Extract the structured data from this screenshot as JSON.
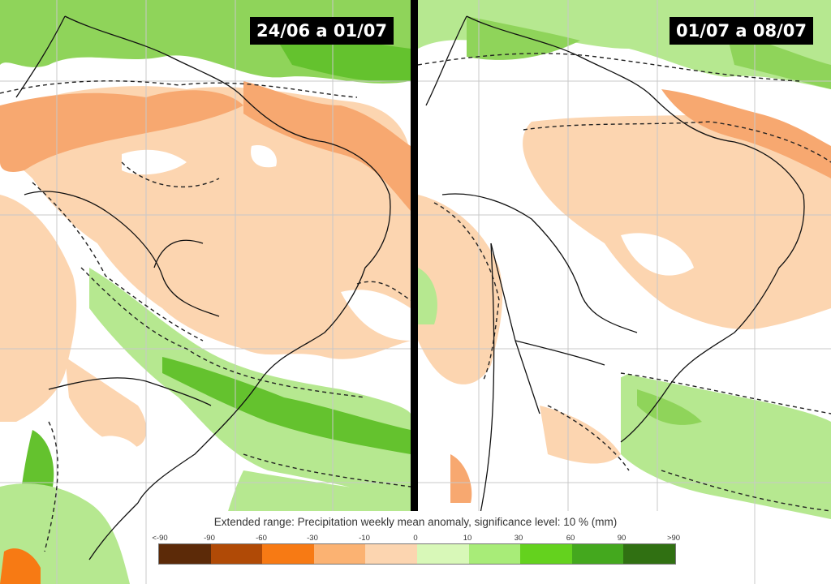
{
  "panels": [
    {
      "period": "24/06 a 01/07"
    },
    {
      "period": "01/07 a 08/07"
    }
  ],
  "legend": {
    "title": "Extended range: Precipitation weekly mean anomaly, significance level: 10 % (mm)",
    "ticks": [
      "<-90",
      "-90",
      "-60",
      "-30",
      "-10",
      "0",
      "10",
      "30",
      "60",
      "90",
      ">90"
    ],
    "colors": [
      "#5c2a08",
      "#b04a06",
      "#f77a14",
      "#fbb272",
      "#fcd5b0",
      "#d8f8b8",
      "#a8ec78",
      "#64d21e",
      "#44a81e",
      "#307012"
    ]
  }
}
